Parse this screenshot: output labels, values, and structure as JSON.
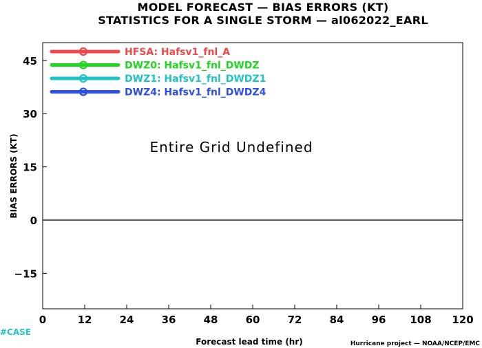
{
  "chart_data": {
    "type": "line",
    "title": "MODEL FORECAST — BIAS ERRORS (KT)",
    "subtitle": "STATISTICS FOR A SINGLE STORM — al062022_EARL",
    "xlabel": "Forecast lead time (hr)",
    "ylabel": "BIAS ERRORS (KT)",
    "xlim": [
      0,
      120
    ],
    "ylim": [
      -25,
      50
    ],
    "x_ticks": [
      0,
      12,
      24,
      36,
      48,
      60,
      72,
      84,
      96,
      108,
      120
    ],
    "x_tick_labels": [
      "0",
      "12",
      "24",
      "36",
      "48",
      "60",
      "72",
      "84",
      "96",
      "108",
      "120"
    ],
    "y_ticks": [
      45,
      30,
      15,
      0,
      -15
    ],
    "y_tick_labels": [
      "45",
      "30",
      "15",
      "0",
      "−15"
    ],
    "zero_line": 0,
    "grid": false,
    "legend_position": "top-left",
    "series": [
      {
        "name": "HFSA: Hafsv1_fnl_A",
        "color": "#f04848",
        "values": []
      },
      {
        "name": "DWZ0: Hafsv1_fnl_DWDZ",
        "color": "#1ed81e",
        "values": []
      },
      {
        "name": "DWZ1: Hafsv1_fnl_DWDZ1",
        "color": "#21c4c4",
        "values": []
      },
      {
        "name": "DWZ4: Hafsv1_fnl_DWDZ4",
        "color": "#2e4ee8",
        "values": []
      }
    ],
    "annotation": "Entire Grid Undefined"
  },
  "footer": {
    "left_text": "#CASE",
    "left_color": "#21c4c4",
    "right_text": "Hurricane project — NOAA/NCEP/EMC"
  }
}
